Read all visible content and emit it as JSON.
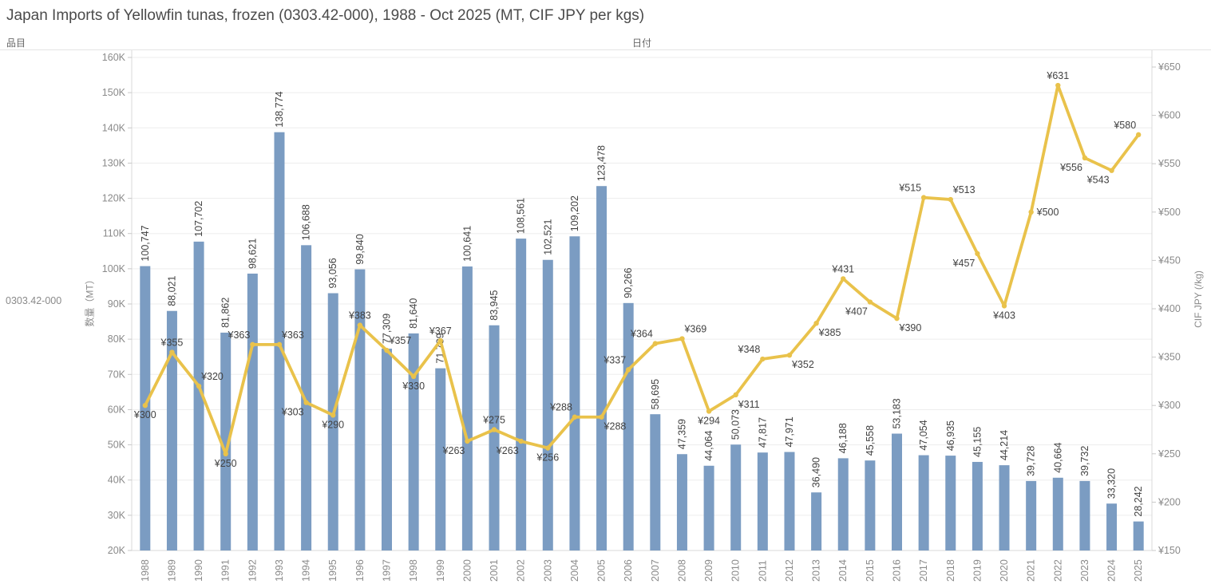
{
  "title": "Japan Imports of Yellowfin tunas, frozen (0303.42-000), 1988 - Oct 2025 (MT, CIF JPY per kgs)",
  "header": {
    "row_field_label": "品目",
    "column_field_label": "日付"
  },
  "row_label": "0303.42-000",
  "left_axis": {
    "title": "数量（MT）"
  },
  "right_axis": {
    "title": "CIF JPY (/kg)"
  },
  "colors": {
    "bar": "#7b9cc2",
    "line": "#e9c24b",
    "data_label": "#424242",
    "tick_label": "#8a8a8a",
    "grid": "#ededed",
    "axis_line": "#d8d8d8",
    "tick_mark": "#c9c9c9"
  },
  "chart_data": {
    "type": "bar+line combo",
    "title": "Japan Imports of Yellowfin tunas, frozen (0303.42-000), 1988 - Oct 2025 (MT, CIF JPY per kgs)",
    "categories": [
      "1988",
      "1989",
      "1990",
      "1991",
      "1992",
      "1993",
      "1994",
      "1995",
      "1996",
      "1997",
      "1998",
      "1999",
      "2000",
      "2001",
      "2002",
      "2003",
      "2004",
      "2005",
      "2006",
      "2007",
      "2008",
      "2009",
      "2010",
      "2011",
      "2012",
      "2013",
      "2014",
      "2015",
      "2016",
      "2017",
      "2018",
      "2019",
      "2020",
      "2021",
      "2022",
      "2023",
      "2024",
      "2025"
    ],
    "series": [
      {
        "name": "数量 (MT)",
        "type": "bar",
        "axis": "left",
        "values": [
          100747,
          88021,
          107702,
          81862,
          98621,
          138774,
          106688,
          93056,
          99840,
          77309,
          81640,
          71739,
          100641,
          83945,
          108561,
          102521,
          109202,
          123478,
          90266,
          58695,
          47359,
          44064,
          50073,
          47817,
          47971,
          36490,
          46188,
          45558,
          53183,
          47054,
          46935,
          45155,
          44214,
          39728,
          40664,
          39732,
          33320,
          28242
        ]
      },
      {
        "name": "CIF JPY (/kg)",
        "type": "line",
        "axis": "right",
        "currency_prefix": "¥",
        "values": [
          300,
          355,
          320,
          250,
          363,
          363,
          303,
          290,
          383,
          357,
          330,
          367,
          263,
          275,
          263,
          256,
          288,
          288,
          337,
          364,
          369,
          294,
          311,
          348,
          352,
          385,
          431,
          407,
          390,
          515,
          513,
          457,
          403,
          500,
          631,
          556,
          543,
          580
        ]
      }
    ],
    "left_ylim": [
      20000,
      160000
    ],
    "left_tick_step": 10000,
    "right_ylim": [
      150,
      650
    ],
    "right_tick_step": 50,
    "grid": true,
    "legend_position": "none",
    "label_positions": [
      "b",
      "a",
      "ar",
      "b",
      "al",
      "ar",
      "bl",
      "b",
      "a",
      "ar",
      "b",
      "a",
      "bl",
      "a",
      "bl",
      "b",
      "al",
      "br",
      "al",
      "al",
      "ar",
      "b",
      "br",
      "al",
      "br",
      "br",
      "a",
      "bl",
      "br",
      "al",
      "ar",
      "bl",
      "b",
      "r",
      "a",
      "bl",
      "bl",
      "al"
    ]
  }
}
